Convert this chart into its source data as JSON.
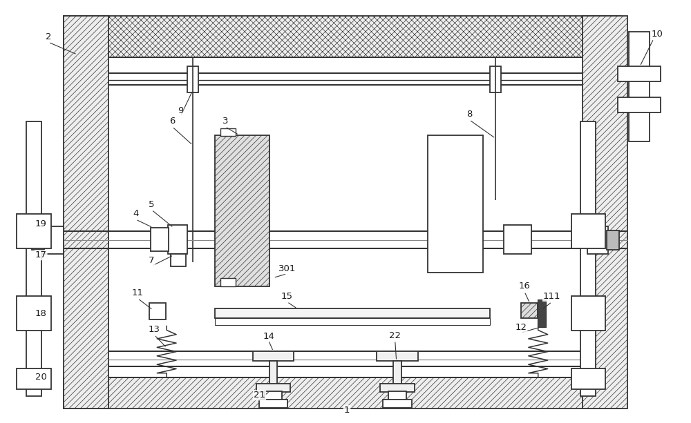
{
  "fig_width": 10.0,
  "fig_height": 6.13,
  "bg_color": "#ffffff",
  "lc": "#333333",
  "lw": 1.3,
  "hatch_lw": 0.5
}
